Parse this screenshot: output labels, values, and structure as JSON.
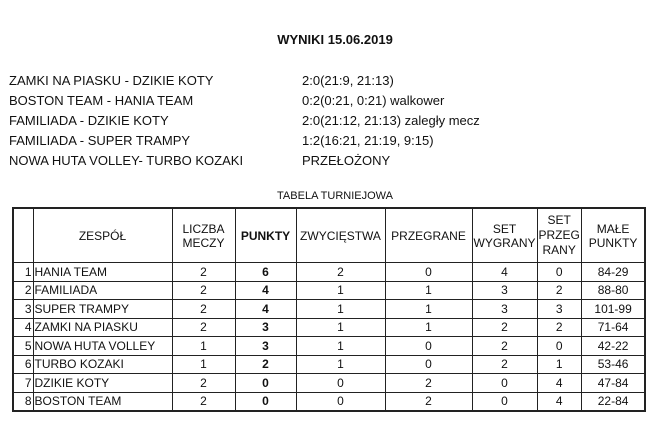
{
  "title": "WYNIKI 15.06.2019",
  "matches": [
    {
      "teams": "ZAMKI NA PIASKU - DZIKIE KOTY",
      "result": "2:0(21:9, 21:13)"
    },
    {
      "teams": "BOSTON TEAM - HANIA TEAM",
      "result": "0:2(0:21, 0:21) walkower"
    },
    {
      "teams": "FAMILIADA - DZIKIE KOTY",
      "result": "2:0(21:12, 21:13) zaległy mecz"
    },
    {
      "teams": "FAMILIADA - SUPER TRAMPY",
      "result": "1:2(16:21, 21:19, 9:15)"
    },
    {
      "teams": "NOWA HUTA VOLLEY- TURBO KOZAKI",
      "result": "PRZEŁOŻONY"
    }
  ],
  "table": {
    "caption": "TABELA TURNIEJOWA",
    "headers": [
      "",
      "ZESPÓŁ",
      "LICZBA MECZY",
      "PUNKTY",
      "ZWYCIĘSTWA",
      "PRZEGRANE",
      "SET WYGRANY",
      "SET PRZEG RANY",
      "MAŁE PUNKTY"
    ],
    "rows": [
      [
        "1",
        "HANIA TEAM",
        "2",
        "6",
        "2",
        "0",
        "4",
        "0",
        "84-29"
      ],
      [
        "2",
        "FAMILIADA",
        "2",
        "4",
        "1",
        "1",
        "3",
        "2",
        "88-80"
      ],
      [
        "3",
        "SUPER TRAMPY",
        "2",
        "4",
        "1",
        "1",
        "3",
        "3",
        "101-99"
      ],
      [
        "4",
        "ZAMKI NA PIASKU",
        "2",
        "3",
        "1",
        "1",
        "2",
        "2",
        "71-64"
      ],
      [
        "5",
        "NOWA HUTA VOLLEY",
        "1",
        "3",
        "1",
        "0",
        "2",
        "0",
        "42-22"
      ],
      [
        "6",
        "TURBO KOZAKI",
        "1",
        "2",
        "1",
        "0",
        "2",
        "1",
        "53-46"
      ],
      [
        "7",
        "DZIKIE KOTY",
        "2",
        "0",
        "0",
        "2",
        "0",
        "4",
        "47-84"
      ],
      [
        "8",
        "BOSTON TEAM",
        "2",
        "0",
        "0",
        "2",
        "0",
        "4",
        "22-84"
      ]
    ]
  }
}
